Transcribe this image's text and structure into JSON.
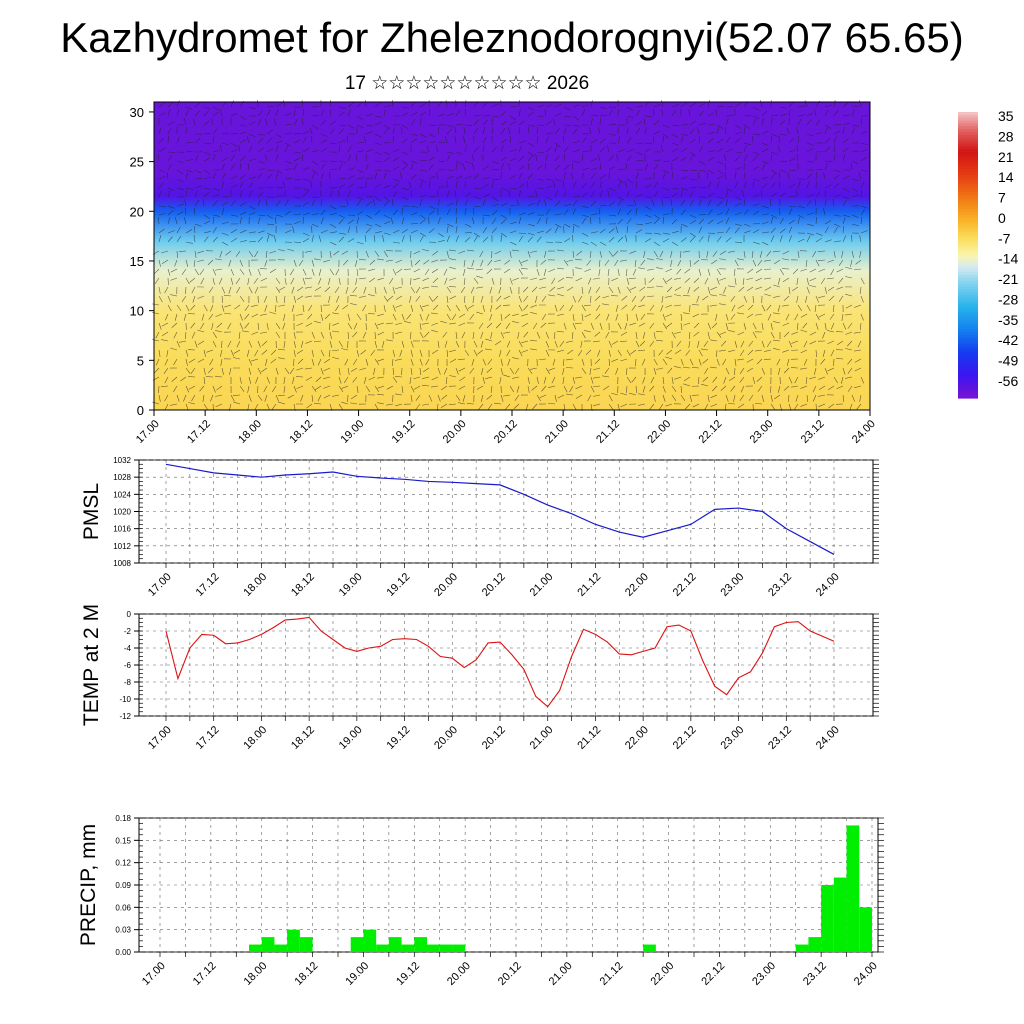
{
  "header": {
    "title": "Kazhydromet for Zheleznodorognyi(52.07 65.65)",
    "subtitle": "17 ☆☆☆☆☆☆☆☆☆☆ 2026"
  },
  "colors": {
    "pmsl_line": "#1a1acc",
    "temp_line": "#dd1111",
    "precip_bar": "#00ee00"
  },
  "chart_data": [
    {
      "type": "heatmap",
      "title": "",
      "xlabel": "",
      "ylabel": "",
      "x_ticks": [
        "17.00",
        "17.12",
        "18.00",
        "18.12",
        "19.00",
        "19.12",
        "20.00",
        "20.12",
        "21.00",
        "21.12",
        "22.00",
        "22.12",
        "23.00",
        "23.12",
        "24.00"
      ],
      "y_ticks": [
        "0",
        "5",
        "10",
        "15",
        "20",
        "25",
        "30"
      ],
      "ylim": [
        0,
        31
      ],
      "colorbar_labels": [
        "35",
        "28",
        "21",
        "14",
        "7",
        "0",
        "-7",
        "-14",
        "-21",
        "-28",
        "-35",
        "-42",
        "-49",
        "-56"
      ],
      "colorbar_range": [
        -60,
        40
      ],
      "layers": [
        {
          "level": 0,
          "value": -3
        },
        {
          "level": 5,
          "value": -4
        },
        {
          "level": 10,
          "value": -6
        },
        {
          "level": 14,
          "value": -12
        },
        {
          "level": 17,
          "value": -22
        },
        {
          "level": 20,
          "value": -40
        },
        {
          "level": 21.5,
          "value": -55
        },
        {
          "level": 24,
          "value": -58
        },
        {
          "level": 31,
          "value": -58
        }
      ]
    },
    {
      "type": "line",
      "ylabel": "PMSL",
      "ylim": [
        1008,
        1032
      ],
      "y_ticks": [
        "1008",
        "1012",
        "1016",
        "1020",
        "1024",
        "1028",
        "1032"
      ],
      "x_ticks": [
        "17.00",
        "17.12",
        "18.00",
        "18.12",
        "19.00",
        "19.12",
        "20.00",
        "20.12",
        "21.00",
        "21.12",
        "22.00",
        "22.12",
        "23.00",
        "23.12",
        "24.00"
      ],
      "x_hours": [
        0,
        6,
        12,
        18,
        24,
        30,
        36,
        42,
        48,
        54,
        60,
        66,
        72,
        78,
        84,
        90,
        96,
        102,
        108,
        114,
        120,
        126,
        132,
        138,
        144,
        150,
        156,
        162,
        168
      ],
      "series": [
        {
          "values": [
            1031,
            1030,
            1029,
            1028.5,
            1028,
            1028.5,
            1028.8,
            1029.2,
            1028.2,
            1027.8,
            1027.5,
            1027,
            1026.8,
            1026.5,
            1026.2,
            1024,
            1021.5,
            1019.5,
            1017,
            1015.2,
            1014,
            1015.5,
            1017,
            1020.5,
            1020.8,
            1020,
            1016,
            1013,
            1010
          ]
        }
      ]
    },
    {
      "type": "line",
      "ylabel": "TEMP at 2 M",
      "ylim": [
        -12,
        0
      ],
      "y_ticks": [
        "0",
        "-2",
        "-4",
        "-6",
        "-8",
        "-10",
        "-12"
      ],
      "x_ticks": [
        "17.00",
        "17.12",
        "18.00",
        "18.12",
        "19.00",
        "19.12",
        "20.00",
        "20.12",
        "21.00",
        "21.12",
        "22.00",
        "22.12",
        "23.00",
        "23.12",
        "24.00"
      ],
      "x_hours": [
        0,
        3,
        6,
        9,
        12,
        15,
        18,
        21,
        24,
        27,
        30,
        33,
        36,
        39,
        42,
        45,
        48,
        51,
        54,
        57,
        60,
        63,
        66,
        69,
        72,
        75,
        78,
        81,
        84,
        87,
        90,
        93,
        96,
        99,
        102,
        105,
        108,
        111,
        114,
        117,
        120,
        123,
        126,
        129,
        132,
        135,
        138,
        141,
        144,
        147,
        150,
        153,
        156,
        159,
        162,
        165,
        168
      ],
      "series": [
        {
          "values": [
            -2,
            -7.6,
            -4,
            -2.4,
            -2.5,
            -3.5,
            -3.4,
            -3,
            -2.4,
            -1.6,
            -0.7,
            -0.6,
            -0.4,
            -2,
            -3,
            -4,
            -4.4,
            -4,
            -3.8,
            -3,
            -2.9,
            -3,
            -3.8,
            -5,
            -5.2,
            -6.3,
            -5.4,
            -3.4,
            -3.3,
            -4.8,
            -6.5,
            -9.7,
            -10.9,
            -9,
            -5,
            -1.8,
            -2.4,
            -3.3,
            -4.7,
            -4.8,
            -4.4,
            -4,
            -1.5,
            -1.3,
            -2,
            -5.5,
            -8.5,
            -9.5,
            -7.5,
            -6.8,
            -4.6,
            -1.5,
            -1,
            -0.9,
            -2,
            -2.6,
            -3.2
          ]
        }
      ]
    },
    {
      "type": "bar",
      "ylabel": "PRECIP, mm",
      "ylim": [
        0,
        0.18
      ],
      "y_ticks": [
        "0.00",
        "0.03",
        "0.06",
        "0.09",
        "0.12",
        "0.15",
        "0.18"
      ],
      "x_ticks": [
        "17.00",
        "17.12",
        "18.00",
        "18.12",
        "19.00",
        "19.12",
        "20.00",
        "20.12",
        "21.00",
        "21.12",
        "22.00",
        "22.12",
        "23.00",
        "23.12",
        "24.00"
      ],
      "bars": [
        {
          "hour": 24,
          "value": 0.01
        },
        {
          "hour": 27,
          "value": 0.02
        },
        {
          "hour": 30,
          "value": 0.01
        },
        {
          "hour": 33,
          "value": 0.03
        },
        {
          "hour": 36,
          "value": 0.02
        },
        {
          "hour": 48,
          "value": 0.02
        },
        {
          "hour": 51,
          "value": 0.03
        },
        {
          "hour": 54,
          "value": 0.01
        },
        {
          "hour": 57,
          "value": 0.02
        },
        {
          "hour": 60,
          "value": 0.01
        },
        {
          "hour": 63,
          "value": 0.02
        },
        {
          "hour": 66,
          "value": 0.01
        },
        {
          "hour": 69,
          "value": 0.01
        },
        {
          "hour": 72,
          "value": 0.01
        },
        {
          "hour": 117,
          "value": 0.01
        },
        {
          "hour": 153,
          "value": 0.01
        },
        {
          "hour": 156,
          "value": 0.02
        },
        {
          "hour": 159,
          "value": 0.09
        },
        {
          "hour": 162,
          "value": 0.1
        },
        {
          "hour": 165,
          "value": 0.17
        },
        {
          "hour": 168,
          "value": 0.06
        }
      ]
    }
  ]
}
